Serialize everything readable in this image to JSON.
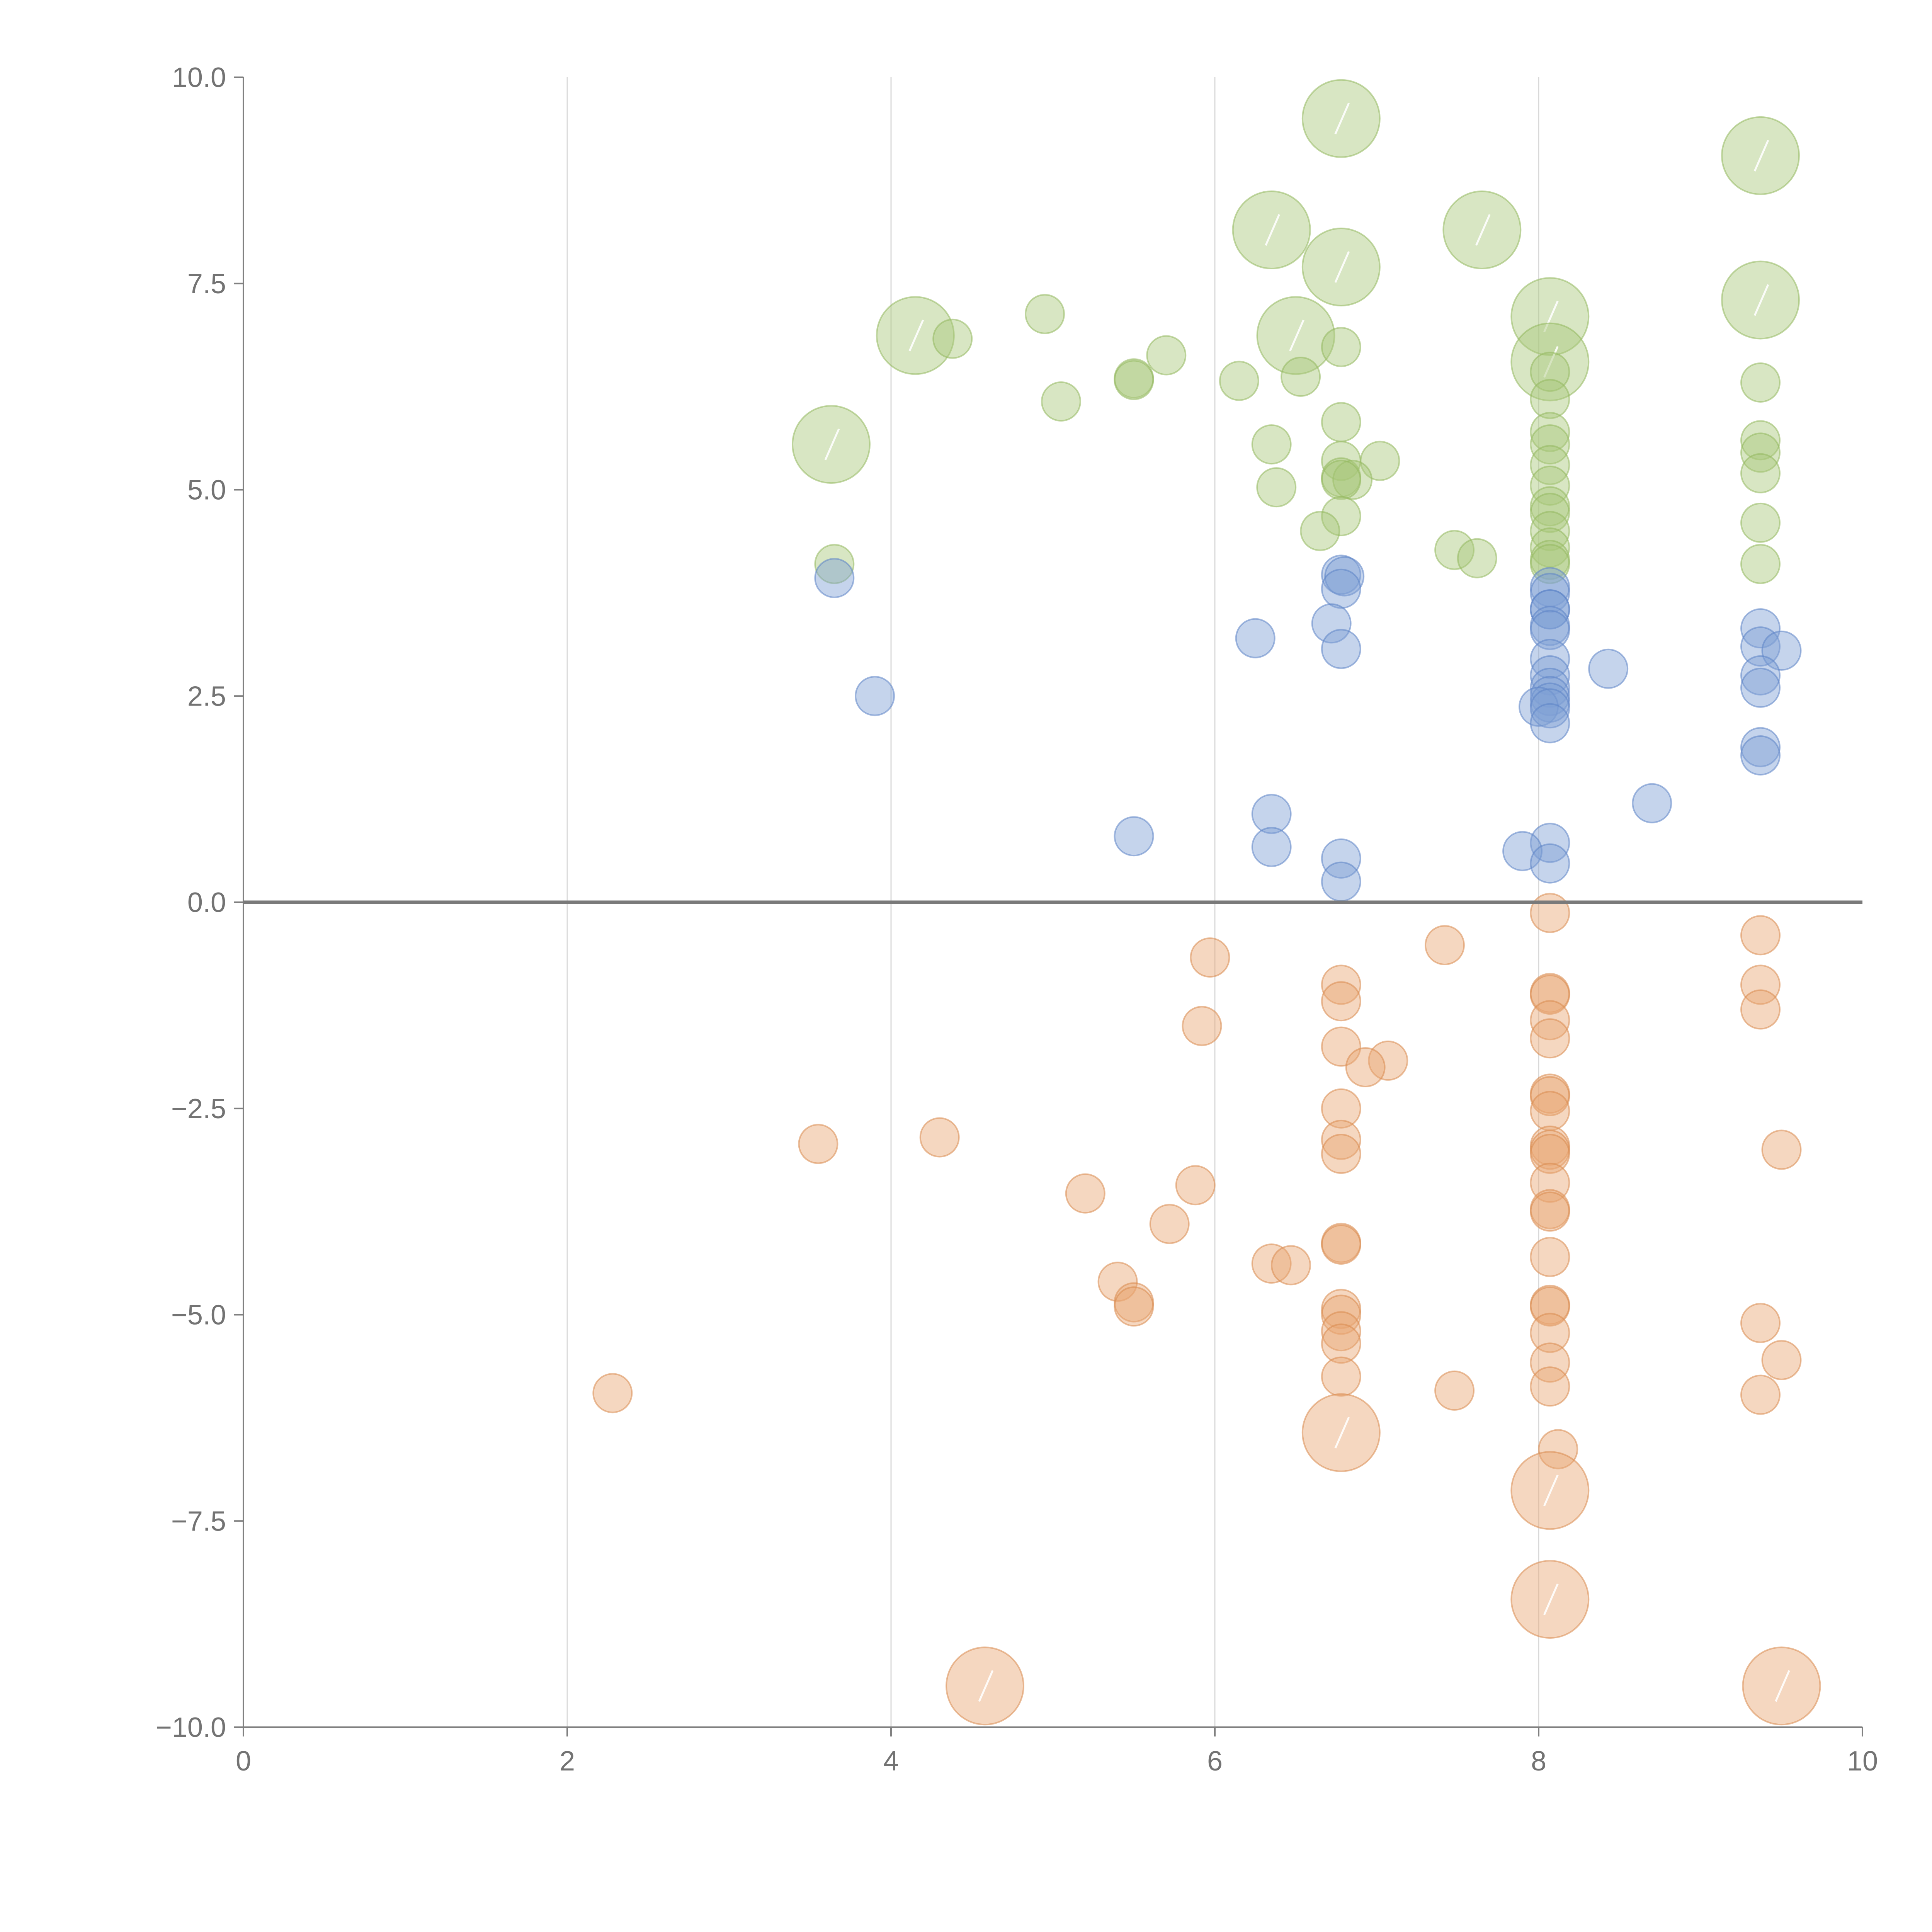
{
  "chart_data": {
    "type": "scatter",
    "title": "",
    "xlabel": "",
    "ylabel": "",
    "xlim": [
      0,
      10
    ],
    "ylim": [
      -10,
      10
    ],
    "x_ticks": [
      0,
      2,
      4,
      6,
      8,
      10
    ],
    "x_tick_labels": [
      "0",
      "2",
      "4",
      "6",
      "8",
      "10"
    ],
    "y_ticks": [
      10,
      7.5,
      5,
      2.5,
      0,
      -2.5,
      -5,
      -7.5,
      -10
    ],
    "y_tick_labels": [
      "10.0",
      "7.5",
      "5.0",
      "2.5",
      "0.0",
      "−2.5",
      "−5.0",
      "−7.5",
      "−10.0"
    ],
    "vertical_grid_x": [
      2,
      4,
      6,
      8
    ],
    "zero_line_y": 0,
    "series": [
      {
        "name": "green",
        "color": "#a9c77a",
        "stroke": "#93b85e",
        "points": [
          {
            "x": 6.78,
            "y": 9.5,
            "size": 3
          },
          {
            "x": 9.37,
            "y": 9.05,
            "size": 3
          },
          {
            "x": 6.35,
            "y": 8.15,
            "size": 3
          },
          {
            "x": 7.65,
            "y": 8.15,
            "size": 3
          },
          {
            "x": 6.78,
            "y": 7.7,
            "size": 3
          },
          {
            "x": 8.07,
            "y": 7.1,
            "size": 3
          },
          {
            "x": 9.37,
            "y": 7.3,
            "size": 3
          },
          {
            "x": 4.95,
            "y": 7.13,
            "size": 1
          },
          {
            "x": 4.15,
            "y": 6.87,
            "size": 3
          },
          {
            "x": 4.38,
            "y": 6.83,
            "size": 1
          },
          {
            "x": 6.5,
            "y": 6.87,
            "size": 3
          },
          {
            "x": 6.78,
            "y": 6.73,
            "size": 1
          },
          {
            "x": 5.7,
            "y": 6.63,
            "size": 1
          },
          {
            "x": 5.5,
            "y": 6.35,
            "size": 1
          },
          {
            "x": 5.5,
            "y": 6.33,
            "size": 1
          },
          {
            "x": 6.15,
            "y": 6.32,
            "size": 1
          },
          {
            "x": 6.53,
            "y": 6.37,
            "size": 1
          },
          {
            "x": 8.07,
            "y": 6.55,
            "size": 3
          },
          {
            "x": 8.07,
            "y": 6.43,
            "size": 1
          },
          {
            "x": 9.37,
            "y": 6.3,
            "size": 1
          },
          {
            "x": 5.05,
            "y": 6.07,
            "size": 1
          },
          {
            "x": 8.07,
            "y": 6.1,
            "size": 1
          },
          {
            "x": 6.78,
            "y": 5.82,
            "size": 1
          },
          {
            "x": 3.63,
            "y": 5.55,
            "size": 3
          },
          {
            "x": 6.35,
            "y": 5.55,
            "size": 1
          },
          {
            "x": 8.07,
            "y": 5.7,
            "size": 1
          },
          {
            "x": 8.07,
            "y": 5.55,
            "size": 1
          },
          {
            "x": 9.37,
            "y": 5.6,
            "size": 1
          },
          {
            "x": 9.37,
            "y": 5.45,
            "size": 1
          },
          {
            "x": 6.78,
            "y": 5.35,
            "size": 1
          },
          {
            "x": 7.02,
            "y": 5.35,
            "size": 1
          },
          {
            "x": 8.07,
            "y": 5.3,
            "size": 1
          },
          {
            "x": 9.37,
            "y": 5.2,
            "size": 1
          },
          {
            "x": 6.78,
            "y": 5.15,
            "size": 1
          },
          {
            "x": 6.85,
            "y": 5.12,
            "size": 1
          },
          {
            "x": 6.78,
            "y": 5.12,
            "size": 1
          },
          {
            "x": 6.38,
            "y": 5.03,
            "size": 1
          },
          {
            "x": 8.07,
            "y": 5.05,
            "size": 1
          },
          {
            "x": 8.07,
            "y": 4.8,
            "size": 1
          },
          {
            "x": 6.78,
            "y": 4.68,
            "size": 1
          },
          {
            "x": 8.07,
            "y": 4.72,
            "size": 1
          },
          {
            "x": 9.37,
            "y": 4.6,
            "size": 1
          },
          {
            "x": 6.65,
            "y": 4.5,
            "size": 1
          },
          {
            "x": 8.07,
            "y": 4.5,
            "size": 1
          },
          {
            "x": 7.48,
            "y": 4.27,
            "size": 1
          },
          {
            "x": 7.62,
            "y": 4.17,
            "size": 1
          },
          {
            "x": 8.07,
            "y": 4.3,
            "size": 1
          },
          {
            "x": 8.07,
            "y": 4.15,
            "size": 1
          },
          {
            "x": 8.07,
            "y": 4.1,
            "size": 1
          },
          {
            "x": 9.37,
            "y": 4.1,
            "size": 1
          },
          {
            "x": 3.65,
            "y": 4.1,
            "size": 1
          }
        ]
      },
      {
        "name": "blue",
        "color": "#7f9fd4",
        "stroke": "#5d84c6",
        "points": [
          {
            "x": 3.65,
            "y": 3.93,
            "size": 1
          },
          {
            "x": 6.78,
            "y": 3.97,
            "size": 1
          },
          {
            "x": 6.8,
            "y": 3.95,
            "size": 1
          },
          {
            "x": 6.78,
            "y": 3.8,
            "size": 1
          },
          {
            "x": 8.07,
            "y": 3.82,
            "size": 1
          },
          {
            "x": 8.07,
            "y": 3.75,
            "size": 1
          },
          {
            "x": 8.07,
            "y": 3.55,
            "size": 1
          },
          {
            "x": 8.07,
            "y": 3.55,
            "size": 1
          },
          {
            "x": 6.72,
            "y": 3.38,
            "size": 1
          },
          {
            "x": 8.07,
            "y": 3.35,
            "size": 1
          },
          {
            "x": 8.07,
            "y": 3.3,
            "size": 1
          },
          {
            "x": 9.37,
            "y": 3.32,
            "size": 1
          },
          {
            "x": 6.25,
            "y": 3.2,
            "size": 1
          },
          {
            "x": 9.37,
            "y": 3.1,
            "size": 1
          },
          {
            "x": 9.5,
            "y": 3.05,
            "size": 1
          },
          {
            "x": 6.78,
            "y": 3.07,
            "size": 1
          },
          {
            "x": 8.07,
            "y": 2.95,
            "size": 1
          },
          {
            "x": 8.43,
            "y": 2.83,
            "size": 1
          },
          {
            "x": 8.07,
            "y": 2.75,
            "size": 1
          },
          {
            "x": 9.37,
            "y": 2.75,
            "size": 1
          },
          {
            "x": 8.07,
            "y": 2.6,
            "size": 1
          },
          {
            "x": 9.37,
            "y": 2.6,
            "size": 1
          },
          {
            "x": 3.9,
            "y": 2.5,
            "size": 1
          },
          {
            "x": 8.07,
            "y": 2.5,
            "size": 1
          },
          {
            "x": 8.07,
            "y": 2.42,
            "size": 1
          },
          {
            "x": 8.0,
            "y": 2.37,
            "size": 1
          },
          {
            "x": 8.07,
            "y": 2.35,
            "size": 1
          },
          {
            "x": 8.07,
            "y": 2.17,
            "size": 1
          },
          {
            "x": 9.37,
            "y": 1.88,
            "size": 1
          },
          {
            "x": 9.37,
            "y": 1.78,
            "size": 1
          },
          {
            "x": 8.7,
            "y": 1.2,
            "size": 1
          },
          {
            "x": 6.35,
            "y": 1.07,
            "size": 1
          },
          {
            "x": 5.5,
            "y": 0.8,
            "size": 1
          },
          {
            "x": 8.07,
            "y": 0.72,
            "size": 1
          },
          {
            "x": 6.35,
            "y": 0.67,
            "size": 1
          },
          {
            "x": 7.9,
            "y": 0.62,
            "size": 1
          },
          {
            "x": 6.78,
            "y": 0.53,
            "size": 1
          },
          {
            "x": 8.07,
            "y": 0.47,
            "size": 1
          },
          {
            "x": 6.78,
            "y": 0.25,
            "size": 1
          }
        ]
      },
      {
        "name": "orange",
        "color": "#e9a673",
        "stroke": "#d98a4e",
        "points": [
          {
            "x": 8.07,
            "y": -0.13,
            "size": 1
          },
          {
            "x": 9.37,
            "y": -0.4,
            "size": 1
          },
          {
            "x": 7.42,
            "y": -0.52,
            "size": 1
          },
          {
            "x": 5.97,
            "y": -0.67,
            "size": 1
          },
          {
            "x": 6.78,
            "y": -1.0,
            "size": 1
          },
          {
            "x": 9.37,
            "y": -1.0,
            "size": 1
          },
          {
            "x": 8.07,
            "y": -1.1,
            "size": 1
          },
          {
            "x": 8.07,
            "y": -1.12,
            "size": 1
          },
          {
            "x": 6.78,
            "y": -1.2,
            "size": 1
          },
          {
            "x": 9.37,
            "y": -1.3,
            "size": 1
          },
          {
            "x": 8.07,
            "y": -1.43,
            "size": 1
          },
          {
            "x": 5.92,
            "y": -1.5,
            "size": 1
          },
          {
            "x": 8.07,
            "y": -1.65,
            "size": 1
          },
          {
            "x": 6.78,
            "y": -1.75,
            "size": 1
          },
          {
            "x": 7.07,
            "y": -1.92,
            "size": 1
          },
          {
            "x": 6.93,
            "y": -2.0,
            "size": 1
          },
          {
            "x": 8.07,
            "y": -2.32,
            "size": 1
          },
          {
            "x": 8.07,
            "y": -2.35,
            "size": 1
          },
          {
            "x": 6.78,
            "y": -2.5,
            "size": 1
          },
          {
            "x": 8.07,
            "y": -2.53,
            "size": 1
          },
          {
            "x": 4.3,
            "y": -2.85,
            "size": 1
          },
          {
            "x": 3.55,
            "y": -2.93,
            "size": 1
          },
          {
            "x": 6.78,
            "y": -2.88,
            "size": 1
          },
          {
            "x": 8.07,
            "y": -2.95,
            "size": 1
          },
          {
            "x": 8.07,
            "y": -3.0,
            "size": 1
          },
          {
            "x": 9.5,
            "y": -3.0,
            "size": 1
          },
          {
            "x": 6.78,
            "y": -3.05,
            "size": 1
          },
          {
            "x": 8.07,
            "y": -3.05,
            "size": 1
          },
          {
            "x": 5.88,
            "y": -3.43,
            "size": 1
          },
          {
            "x": 8.07,
            "y": -3.4,
            "size": 1
          },
          {
            "x": 5.2,
            "y": -3.53,
            "size": 1
          },
          {
            "x": 8.07,
            "y": -3.72,
            "size": 1
          },
          {
            "x": 8.07,
            "y": -3.75,
            "size": 1
          },
          {
            "x": 5.72,
            "y": -3.9,
            "size": 1
          },
          {
            "x": 6.78,
            "y": -4.13,
            "size": 1
          },
          {
            "x": 6.78,
            "y": -4.15,
            "size": 1
          },
          {
            "x": 8.07,
            "y": -4.3,
            "size": 1
          },
          {
            "x": 6.35,
            "y": -4.38,
            "size": 1
          },
          {
            "x": 6.47,
            "y": -4.4,
            "size": 1
          },
          {
            "x": 5.4,
            "y": -4.6,
            "size": 1
          },
          {
            "x": 5.5,
            "y": -4.85,
            "size": 1
          },
          {
            "x": 5.5,
            "y": -4.9,
            "size": 1
          },
          {
            "x": 8.07,
            "y": -4.88,
            "size": 1
          },
          {
            "x": 8.07,
            "y": -4.9,
            "size": 1
          },
          {
            "x": 6.78,
            "y": -4.93,
            "size": 1
          },
          {
            "x": 6.78,
            "y": -5.0,
            "size": 1
          },
          {
            "x": 9.37,
            "y": -5.1,
            "size": 1
          },
          {
            "x": 6.78,
            "y": -5.2,
            "size": 1
          },
          {
            "x": 8.07,
            "y": -5.22,
            "size": 1
          },
          {
            "x": 6.78,
            "y": -5.35,
            "size": 1
          },
          {
            "x": 9.5,
            "y": -5.55,
            "size": 1
          },
          {
            "x": 8.07,
            "y": -5.58,
            "size": 1
          },
          {
            "x": 6.78,
            "y": -5.75,
            "size": 1
          },
          {
            "x": 8.07,
            "y": -5.87,
            "size": 1
          },
          {
            "x": 2.28,
            "y": -5.95,
            "size": 1
          },
          {
            "x": 7.48,
            "y": -5.92,
            "size": 1
          },
          {
            "x": 9.37,
            "y": -5.97,
            "size": 1
          },
          {
            "x": 6.78,
            "y": -6.43,
            "size": 3
          },
          {
            "x": 8.12,
            "y": -6.63,
            "size": 1
          },
          {
            "x": 8.07,
            "y": -7.13,
            "size": 3
          },
          {
            "x": 8.07,
            "y": -8.45,
            "size": 3
          },
          {
            "x": 4.58,
            "y": -9.5,
            "size": 3
          },
          {
            "x": 9.5,
            "y": -9.5,
            "size": 3
          }
        ]
      }
    ]
  }
}
